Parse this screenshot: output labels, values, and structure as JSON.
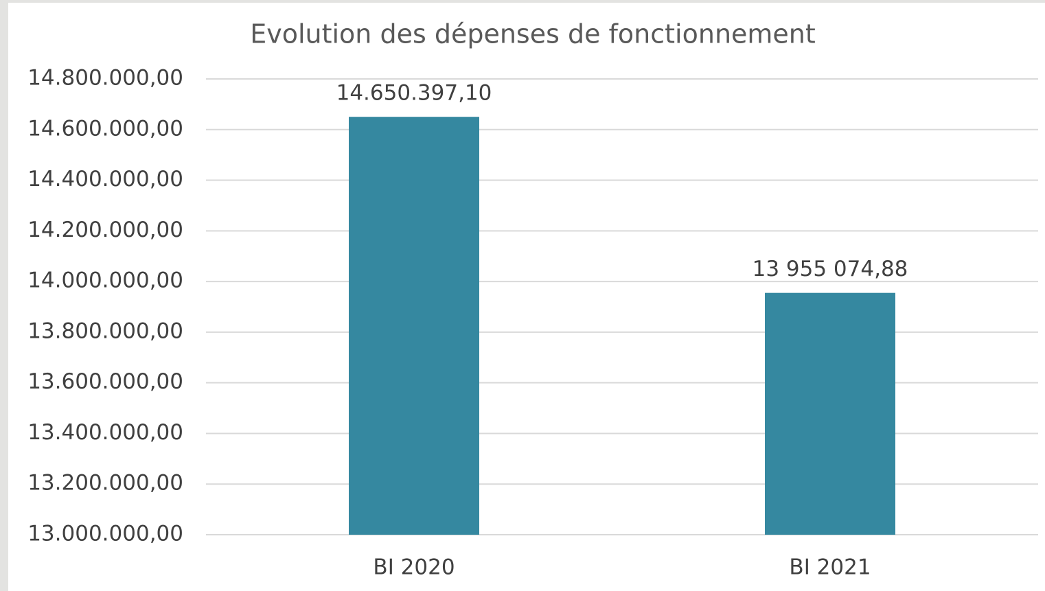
{
  "chart_data": {
    "type": "bar",
    "title": "Evolution des dépenses de fonctionnement",
    "categories": [
      "BI 2020",
      "BI 2021"
    ],
    "values": [
      14650397.1,
      13955074.88
    ],
    "value_labels": [
      "14.650.397,10",
      "13 955 074,88"
    ],
    "color": "#3588a0",
    "ylim": [
      13000000,
      14800000
    ],
    "yticks": [
      {
        "value": 13000000,
        "label": "13.000.000,00"
      },
      {
        "value": 13200000,
        "label": "13.200.000,00"
      },
      {
        "value": 13400000,
        "label": "13.400.000,00"
      },
      {
        "value": 13600000,
        "label": "13.600.000,00"
      },
      {
        "value": 13800000,
        "label": "13.800.000,00"
      },
      {
        "value": 14000000,
        "label": "14.000.000,00"
      },
      {
        "value": 14200000,
        "label": "14.200.000,00"
      },
      {
        "value": 14400000,
        "label": "14.400.000,00"
      },
      {
        "value": 14600000,
        "label": "14.600.000,00"
      },
      {
        "value": 14800000,
        "label": "14.800.000,00"
      }
    ],
    "grid": true
  }
}
